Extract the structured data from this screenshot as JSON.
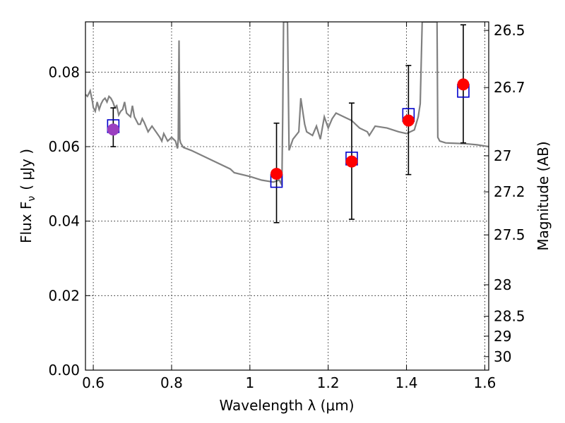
{
  "chart_data": {
    "type": "scatter",
    "xlabel": "Wavelength  λ (μm)",
    "ylabel": "Flux  F",
    "ylabel_sub": "ν",
    "ylabel_unit": "( μJy )",
    "y2label": "Magnitude (AB)",
    "xlim": [
      0.58,
      1.61
    ],
    "ylim": [
      0.0,
      0.0935
    ],
    "grid": true,
    "x_ticks": [
      0.6,
      0.8,
      1.0,
      1.2,
      1.4,
      1.6
    ],
    "x_tick_labels": [
      "0.6",
      "0.8",
      "1",
      "1.2",
      "1.4",
      "1.6"
    ],
    "y_ticks": [
      0.0,
      0.02,
      0.04,
      0.06,
      0.08
    ],
    "y_tick_labels": [
      "0.00",
      "0.02",
      "0.04",
      "0.06",
      "0.08"
    ],
    "y2_ticks": [
      26.5,
      26.7,
      27,
      27.2,
      27.5,
      28,
      28.5,
      29,
      30
    ],
    "y2_tick_labels": [
      "26.5",
      "26.7",
      "27",
      "27.2",
      "27.5",
      "28",
      "28.5",
      "29",
      "30"
    ],
    "model_spectrum": {
      "color": "#808080",
      "x": [
        0.58,
        0.585,
        0.592,
        0.598,
        0.6,
        0.605,
        0.61,
        0.615,
        0.62,
        0.625,
        0.63,
        0.635,
        0.64,
        0.645,
        0.65,
        0.655,
        0.66,
        0.665,
        0.67,
        0.675,
        0.68,
        0.685,
        0.69,
        0.695,
        0.7,
        0.705,
        0.71,
        0.715,
        0.72,
        0.725,
        0.73,
        0.74,
        0.75,
        0.76,
        0.77,
        0.775,
        0.78,
        0.79,
        0.8,
        0.81,
        0.815,
        0.817,
        0.819,
        0.821,
        0.823,
        0.83,
        0.85,
        0.9,
        0.95,
        0.96,
        1.0,
        1.03,
        1.06,
        1.075,
        1.08,
        1.082,
        1.084,
        1.086,
        1.088,
        1.09,
        1.093,
        1.096,
        1.1,
        1.11,
        1.125,
        1.13,
        1.14,
        1.145,
        1.16,
        1.17,
        1.18,
        1.19,
        1.2,
        1.21,
        1.22,
        1.24,
        1.26,
        1.28,
        1.3,
        1.305,
        1.32,
        1.35,
        1.38,
        1.4,
        1.42,
        1.43,
        1.435,
        1.44,
        1.445,
        1.46,
        1.47,
        1.478,
        1.48,
        1.485,
        1.5,
        1.55,
        1.58,
        1.61
      ],
      "y": [
        0.074,
        0.0735,
        0.075,
        0.072,
        0.0705,
        0.0695,
        0.072,
        0.07,
        0.0715,
        0.0725,
        0.073,
        0.072,
        0.0735,
        0.073,
        0.072,
        0.0705,
        0.071,
        0.0685,
        0.0695,
        0.07,
        0.072,
        0.069,
        0.0685,
        0.068,
        0.071,
        0.068,
        0.067,
        0.066,
        0.066,
        0.0675,
        0.0665,
        0.064,
        0.0655,
        0.064,
        0.0625,
        0.0615,
        0.0635,
        0.0615,
        0.0625,
        0.0615,
        0.0595,
        0.062,
        0.0885,
        0.062,
        0.061,
        0.0598,
        0.059,
        0.0565,
        0.054,
        0.053,
        0.052,
        0.051,
        0.0505,
        0.051,
        0.05,
        0.0525,
        0.07,
        0.0935,
        0.0935,
        0.0935,
        0.0935,
        0.0935,
        0.059,
        0.062,
        0.064,
        0.073,
        0.066,
        0.064,
        0.063,
        0.0655,
        0.062,
        0.068,
        0.065,
        0.0675,
        0.069,
        0.068,
        0.067,
        0.065,
        0.064,
        0.063,
        0.0655,
        0.065,
        0.064,
        0.0635,
        0.0645,
        0.068,
        0.0715,
        0.0935,
        0.0935,
        0.0935,
        0.0935,
        0.0935,
        0.0625,
        0.0615,
        0.061,
        0.0608,
        0.0605,
        0.06
      ]
    },
    "series": [
      {
        "marker": "square-open",
        "color": "#0000cc",
        "x": [
          0.651,
          1.068,
          1.26,
          1.405,
          1.545
        ],
        "y": [
          0.0655,
          0.0508,
          0.0568,
          0.0685,
          0.075
        ]
      },
      {
        "marker": "circle",
        "color": "#ff0000",
        "x": [
          0.651,
          1.068,
          1.26,
          1.405,
          1.545
        ],
        "y": [
          0.0646,
          0.0527,
          0.056,
          0.067,
          0.0767
        ],
        "yerr_low": [
          0.0046,
          0.0131,
          0.0155,
          0.0145,
          0.0157
        ],
        "yerr_high": [
          0.0058,
          0.0136,
          0.0157,
          0.0148,
          0.016
        ]
      }
    ],
    "overlap_color": "#9b3fc0"
  }
}
